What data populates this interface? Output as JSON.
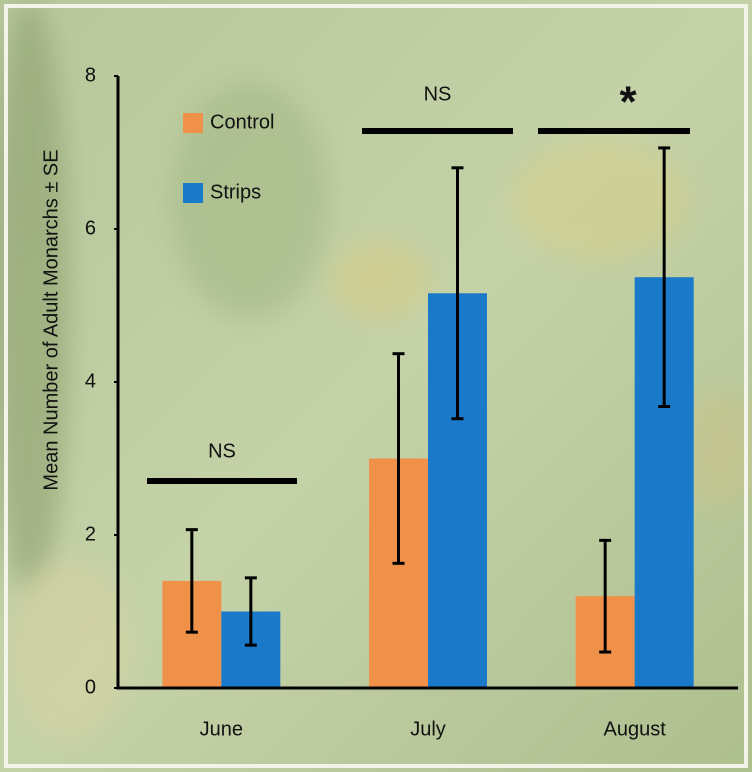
{
  "chart_data": {
    "type": "bar",
    "ylabel": "Mean Number of Adult Monarchs ± SE",
    "categories": [
      "June",
      "July",
      "August"
    ],
    "series": [
      {
        "name": "Control",
        "color": "#f0914a",
        "values": [
          1.4,
          3.0,
          1.2
        ],
        "errors": [
          0.67,
          1.37,
          0.73
        ]
      },
      {
        "name": "Strips",
        "color": "#1a7ac9",
        "values": [
          1.0,
          5.16,
          5.37
        ],
        "errors": [
          0.44,
          1.64,
          1.69
        ]
      }
    ],
    "ylim": [
      0,
      8
    ],
    "yticks": [
      0,
      2,
      4,
      6,
      8
    ],
    "grid": false,
    "annotations": [
      "NS",
      "NS",
      "*"
    ]
  }
}
